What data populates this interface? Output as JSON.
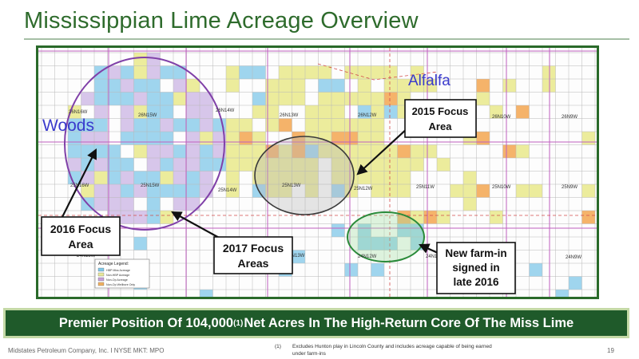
{
  "slide": {
    "title": "Mississippian Lime Acreage Overview",
    "page_number": "19",
    "footer_left": "Midstates Petroleum Company, Inc. I NYSE MKT: MPO",
    "footnote_number": "(1)",
    "footnote_text": "Excludes Hunton play in Lincoln County and includes acreage capable of being earned under farm-ins"
  },
  "banner": {
    "before": "Premier Position Of 104,000",
    "superscript": "(1)",
    "after": " Net Acres In The High-Return Core Of The Miss Lime"
  },
  "map": {
    "county_labels": {
      "woods": "Woods",
      "alfalfa": "Alfalfa"
    },
    "township_labels": {
      "t26n16w": "26N16W",
      "t26n15w": "26N15W",
      "t26n14w": "26N14W",
      "t26n13w": "26N13W",
      "t26n12w": "26N12W",
      "t26n10w": "26N10W",
      "t26n9w": "26N9W",
      "t25n16w": "25N16W",
      "t25n15w": "25N15W",
      "t25n14w": "25N14W",
      "t25n13w": "25N13W",
      "t25n12w": "25N12W",
      "t25n11w": "25N11W",
      "t25n10w": "25N10W",
      "t25n9w": "25N9W",
      "t24n15w": "24N15W",
      "t24n13w": "24N13W",
      "t24n12w": "24N12W",
      "t24n11w": "24N11W",
      "t24n9w": "24N9W"
    },
    "callouts": {
      "focus_2015": [
        "2015 Focus",
        "Area"
      ],
      "focus_2016": [
        "2016 Focus",
        "Area"
      ],
      "focus_2017": [
        "2017 Focus",
        "Areas"
      ],
      "farm_in": [
        "New farm-in",
        "signed in",
        "late 2016"
      ]
    },
    "legend": {
      "title": "Acreage Legend:",
      "items": [
        "HBP Miss Acreage",
        "Non-HBP Acreage",
        "Non-Op Acreage",
        "Non-Op Wellbore Only"
      ],
      "colors": [
        "#7ec8e8",
        "#e8e89a",
        "#c8a0d8",
        "#f0b060"
      ]
    },
    "colors": {
      "light_blue": "#9fd5ee",
      "yellow": "#ecec9c",
      "lavender": "#d7c6ea",
      "orange": "#f5b36a",
      "grid": "#b8b8b8",
      "township_lines": "#c060c0",
      "focus_2016_outline": "#8040a8",
      "focus_2015_outline": "#3a3a3a",
      "farm_in_outline": "#2a8a3a"
    }
  }
}
